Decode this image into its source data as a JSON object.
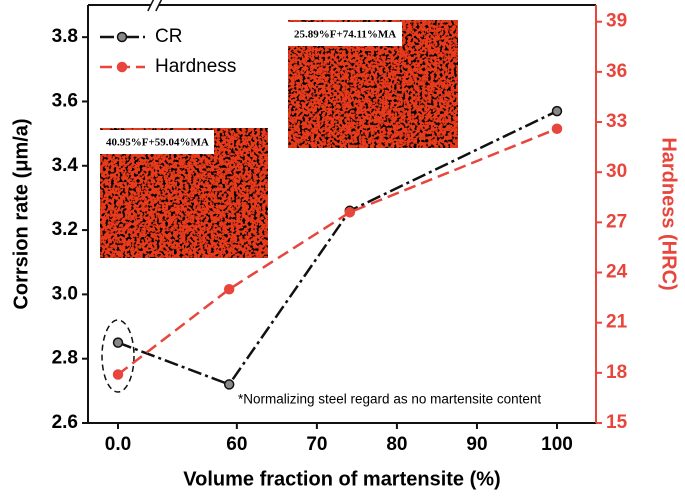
{
  "chart_data": {
    "type": "line",
    "xlabel": "Volume fraction of martensite (%)",
    "ylabel": "Corrsion rate (μm/a)",
    "y2label": "Hardness (HRC)",
    "xlim": [
      -3.75,
      104.875
    ],
    "xbreak": [
      4.6,
      49.75
    ],
    "xticks": [
      {
        "value": 0,
        "label": "0.0"
      },
      60,
      70,
      80,
      90,
      100
    ],
    "ylim": [
      2.6,
      3.9
    ],
    "yticks": [
      {
        "value": 2.6,
        "label": "2.6"
      },
      {
        "value": 2.8,
        "label": "2.8"
      },
      {
        "value": 3.0,
        "label": "3.0"
      },
      {
        "value": 3.2,
        "label": "3.2"
      },
      {
        "value": 3.4,
        "label": "3.4"
      },
      {
        "value": 3.6,
        "label": "3.6"
      },
      {
        "value": 3.8,
        "label": "3.8"
      }
    ],
    "y2lim": [
      15,
      40
    ],
    "y2ticks": [
      15,
      18,
      21,
      24,
      27,
      30,
      33,
      36,
      39
    ],
    "x": [
      0,
      59.04,
      74.11,
      100
    ],
    "series": [
      {
        "name": "CR",
        "color": "#111111",
        "values": [
          2.85,
          2.72,
          3.26,
          3.57
        ]
      },
      {
        "name": "Hardness",
        "color": "#e8453c",
        "axis": "y2",
        "values": [
          17.9,
          23.0,
          27.6,
          32.6
        ]
      }
    ],
    "legend": "upper left",
    "annotations": [
      "40.95%F+59.04%MA",
      "25.89%F+74.11%MA",
      "*Normalizing steel regard as no martensite content"
    ]
  }
}
